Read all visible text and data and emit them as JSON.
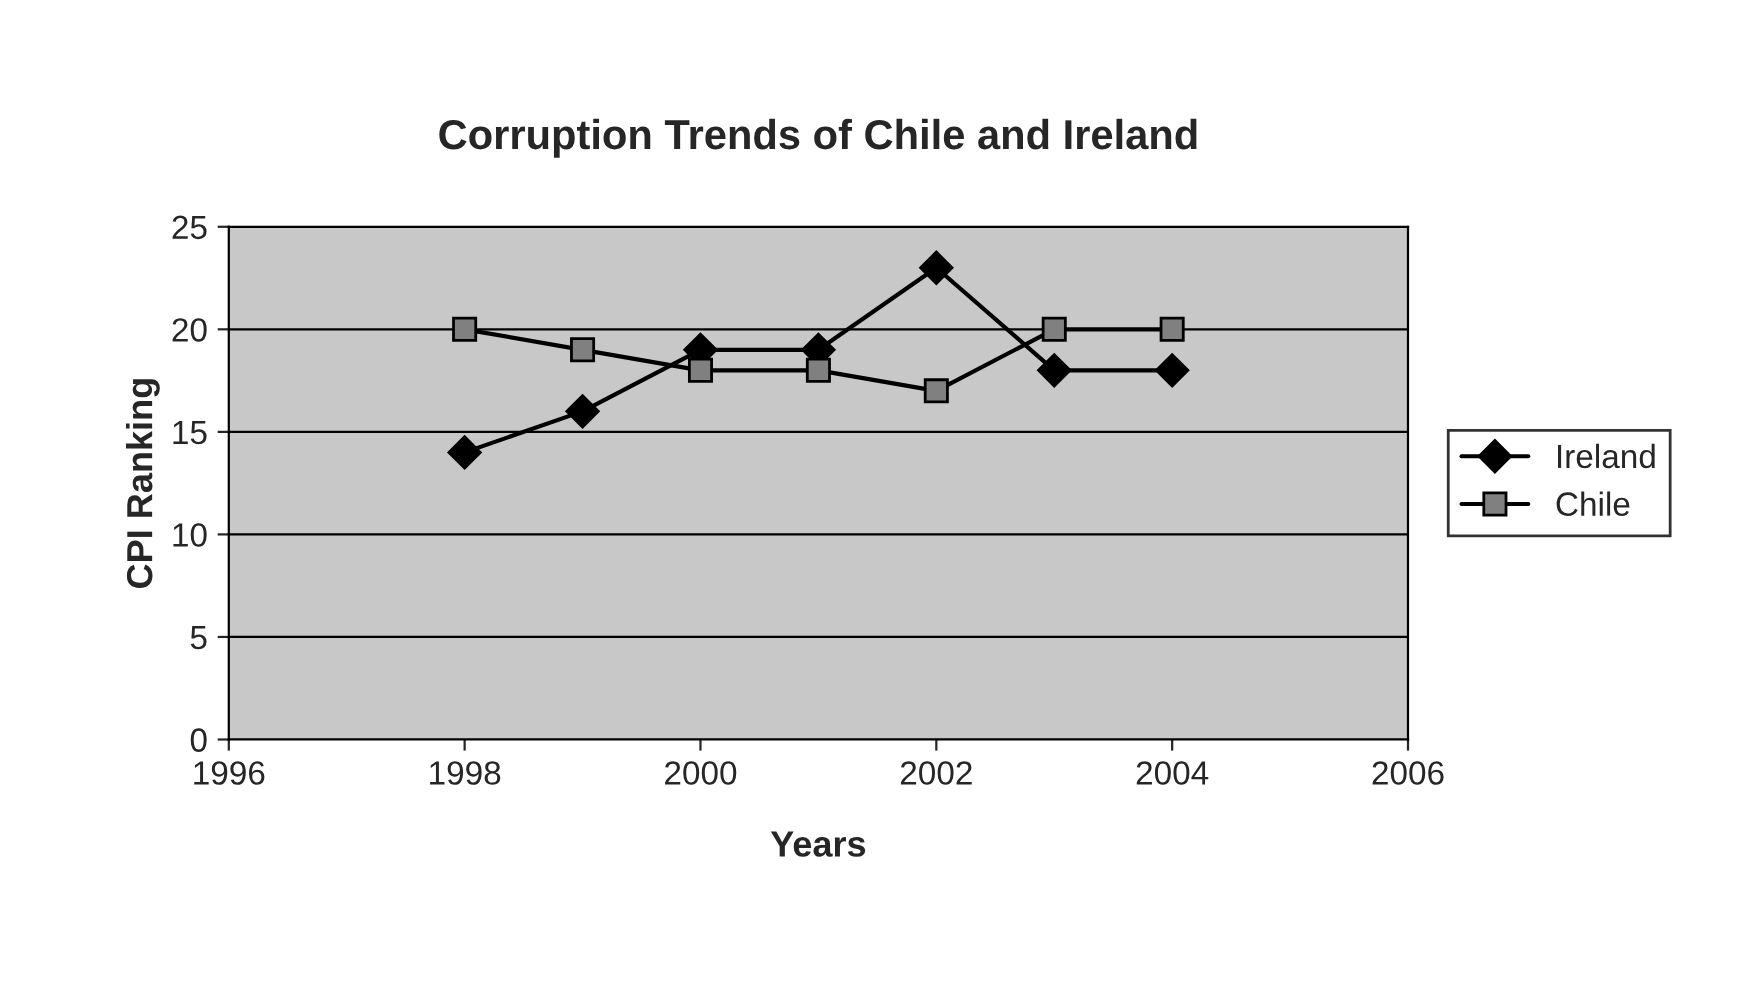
{
  "chart_data": {
    "type": "line",
    "title": "Corruption Trends of Chile and Ireland",
    "xlabel": "Years",
    "ylabel": "CPI Ranking",
    "x": [
      1998,
      1999,
      2000,
      2001,
      2002,
      2003,
      2004
    ],
    "series": [
      {
        "name": "Ireland",
        "color": "#000000",
        "marker": "diamond",
        "values": [
          14,
          16,
          19,
          19,
          23,
          18,
          18
        ]
      },
      {
        "name": "Chile",
        "color": "#808080",
        "marker": "square",
        "values": [
          20,
          19,
          18,
          18,
          17,
          20,
          20
        ]
      }
    ],
    "xlim": [
      1996,
      2006
    ],
    "xticks": [
      1996,
      1998,
      2000,
      2002,
      2004,
      2006
    ],
    "ylim": [
      0,
      25
    ],
    "yticks": [
      0,
      5,
      10,
      15,
      20,
      25
    ],
    "grid": "y",
    "legend": "right",
    "line_style": "solid"
  }
}
